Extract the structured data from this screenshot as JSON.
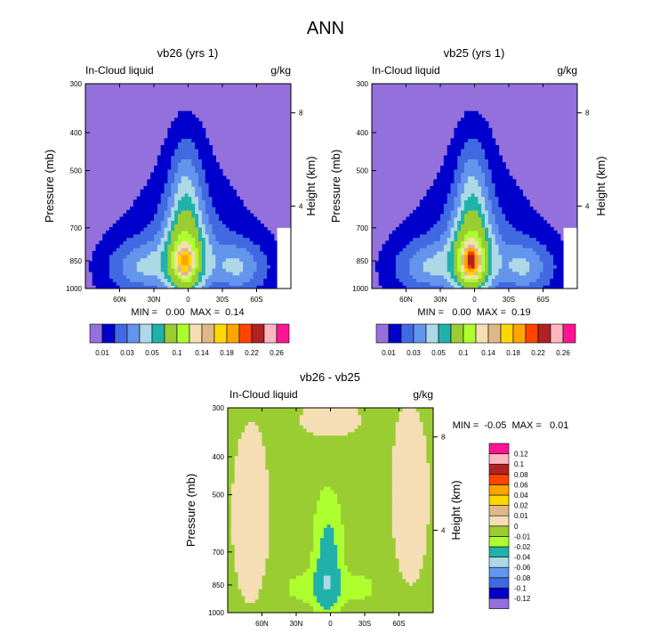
{
  "figure": {
    "title": "ANN"
  },
  "colors": {
    "abs_scale": [
      "#9370db",
      "#0000cd",
      "#4169e1",
      "#6495ed",
      "#add8e6",
      "#20b2aa",
      "#9acd32",
      "#adff2f",
      "#f5deb3",
      "#deb887",
      "#ffd700",
      "#ffa500",
      "#ff4500",
      "#b22222",
      "#ffb6c1",
      "#ff1493"
    ],
    "diff_scale": [
      "#9370db",
      "#0000cd",
      "#4169e1",
      "#6495ed",
      "#add8e6",
      "#20b2aa",
      "#adff2f",
      "#9acd32",
      "#f5deb3",
      "#deb887",
      "#ffd700",
      "#ffa500",
      "#ff4500",
      "#b22222",
      "#ffb6c1",
      "#ff1493"
    ]
  },
  "chart_data": [
    {
      "type": "contour",
      "id": "vb26",
      "title": "vb26 (yrs 1)",
      "variable_label": "In-Cloud liquid",
      "units_label": "g/kg",
      "ylabel": "Pressure (mb)",
      "y2label": "Height (km)",
      "yticks": [
        "300",
        "400",
        "500",
        "700",
        "850",
        "1000"
      ],
      "ylim": [
        1000,
        300
      ],
      "y2ticks": [
        "8",
        "4"
      ],
      "xticks": [
        "60N",
        "30N",
        "0",
        "30S",
        "60S"
      ],
      "stats": "MIN =   0.00  MAX =  0.14",
      "min": 0.0,
      "max": 0.14,
      "peak_lat": 3,
      "peak_pressure": 850
    },
    {
      "type": "contour",
      "id": "vb25",
      "title": "vb25 (yrs 1)",
      "variable_label": "In-Cloud liquid",
      "units_label": "g/kg",
      "ylabel": "Pressure (mb)",
      "y2label": "Height (km)",
      "yticks": [
        "300",
        "400",
        "500",
        "700",
        "850",
        "1000"
      ],
      "ylim": [
        1000,
        300
      ],
      "y2ticks": [
        "8",
        "4"
      ],
      "xticks": [
        "60N",
        "30N",
        "0",
        "30S",
        "60S"
      ],
      "stats": "MIN =   0.00  MAX =  0.19",
      "min": 0.0,
      "max": 0.19,
      "peak_lat": 3,
      "peak_pressure": 850
    },
    {
      "type": "contour",
      "id": "diff",
      "title": "vb26 - vb25",
      "variable_label": "In-Cloud liquid",
      "units_label": "g/kg",
      "ylabel": "Pressure (mb)",
      "y2label": "Height (km)",
      "yticks": [
        "300",
        "400",
        "500",
        "700",
        "850",
        "1000"
      ],
      "ylim": [
        1000,
        300
      ],
      "y2ticks": [
        "8",
        "4"
      ],
      "xticks": [
        "60N",
        "30N",
        "0",
        "30S",
        "60S"
      ],
      "stats": "MIN =  -0.05  MAX =   0.01",
      "min": -0.05,
      "max": 0.01
    }
  ],
  "colorbar_abs": {
    "labels": [
      "0.01",
      "0.03",
      "0.05",
      "0.1",
      "0.14",
      "0.18",
      "0.22",
      "0.26"
    ],
    "levels": [
      "0.01",
      "0.02",
      "0.03",
      "0.04",
      "0.05",
      "0.06",
      "0.08",
      "0.1",
      "0.12",
      "0.14",
      "0.16",
      "0.18",
      "0.2",
      "0.22",
      "0.24",
      "0.26"
    ]
  },
  "colorbar_diff": {
    "labels": [
      "0.12",
      "0.1",
      "0.08",
      "0.06",
      "0.04",
      "0.02",
      "0.01",
      "0",
      "-0.01",
      "-0.02",
      "-0.04",
      "-0.06",
      "-0.08",
      "-0.1",
      "-0.12"
    ]
  }
}
